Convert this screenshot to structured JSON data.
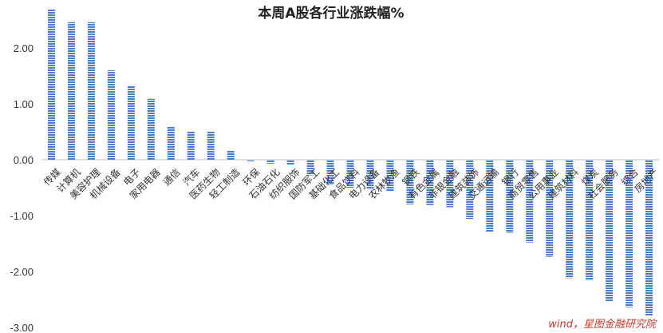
{
  "chart_data": {
    "type": "bar",
    "title": "本周A股各行业涨跌幅%",
    "source": "wind，星图金融研究院",
    "categories": [
      "传媒",
      "计算机",
      "美容护理",
      "机械设备",
      "电子",
      "家用电器",
      "通信",
      "汽车",
      "医药生物",
      "轻工制造",
      "环保",
      "石油石化",
      "纺织服饰",
      "国防军工",
      "基础化工",
      "食品饮料",
      "电力设备",
      "农林牧渔",
      "钢铁",
      "有色金属",
      "非银金融",
      "建筑装饰",
      "交通运输",
      "银行",
      "商贸零售",
      "公用事业",
      "建筑材料",
      "煤炭",
      "社会服务",
      "综合",
      "房地产"
    ],
    "values": [
      2.7,
      2.46,
      2.46,
      1.6,
      1.33,
      1.09,
      0.59,
      0.5,
      0.5,
      0.17,
      -0.02,
      -0.07,
      -0.1,
      -0.28,
      -0.45,
      -0.5,
      -0.53,
      -0.57,
      -0.8,
      -0.81,
      -0.85,
      -1.06,
      -1.3,
      -1.31,
      -1.48,
      -1.74,
      -2.12,
      -2.16,
      -2.54,
      -2.64,
      -2.8
    ],
    "ylim": [
      -3.0,
      2.8
    ],
    "yticks": [
      2.0,
      1.0,
      0.0,
      -1.0,
      -2.0,
      -3.0
    ],
    "ytick_labels": [
      "2.00",
      "1.00",
      "0.00",
      "-1.00",
      "-2.00",
      "-3.00"
    ],
    "xlabel": "",
    "ylabel": "",
    "grid": false,
    "colors": {
      "bar": "#4a7cc9",
      "title": "#222222",
      "axis_text": "#333333",
      "source": "#c0392b"
    }
  }
}
